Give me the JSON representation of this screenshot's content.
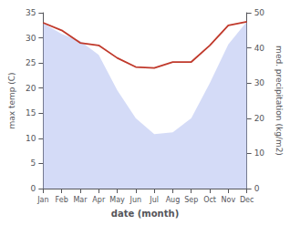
{
  "chart_data": {
    "type": "line",
    "x_label": "date (month)",
    "y_label": "max temp (C)",
    "y2_label": "med. precipitation (kg/m2)",
    "categories": [
      "Jan",
      "Feb",
      "Mar",
      "Apr",
      "May",
      "Jun",
      "Jul",
      "Aug",
      "Sep",
      "Oct",
      "Nov",
      "Dec"
    ],
    "series": [
      {
        "type": "area",
        "axis": "y2",
        "color": "#b0bdf0",
        "values": [
          47.0,
          44.0,
          42.0,
          38.0,
          28.0,
          20.0,
          15.5,
          16.0,
          20.0,
          30.0,
          41.0,
          47.5
        ]
      },
      {
        "type": "line",
        "color": "#c0392b",
        "values": [
          33.0,
          31.5,
          29.0,
          28.5,
          26.0,
          24.2,
          24.0,
          25.2,
          25.2,
          28.5,
          32.5,
          33.2
        ]
      }
    ],
    "ylim": [
      0,
      35
    ],
    "yticks": [
      0,
      5,
      10,
      15,
      20,
      25,
      30,
      35
    ],
    "y2lim": [
      0,
      50
    ],
    "y2ticks": [
      0,
      10,
      20,
      30,
      40,
      50
    ],
    "grid": false
  }
}
